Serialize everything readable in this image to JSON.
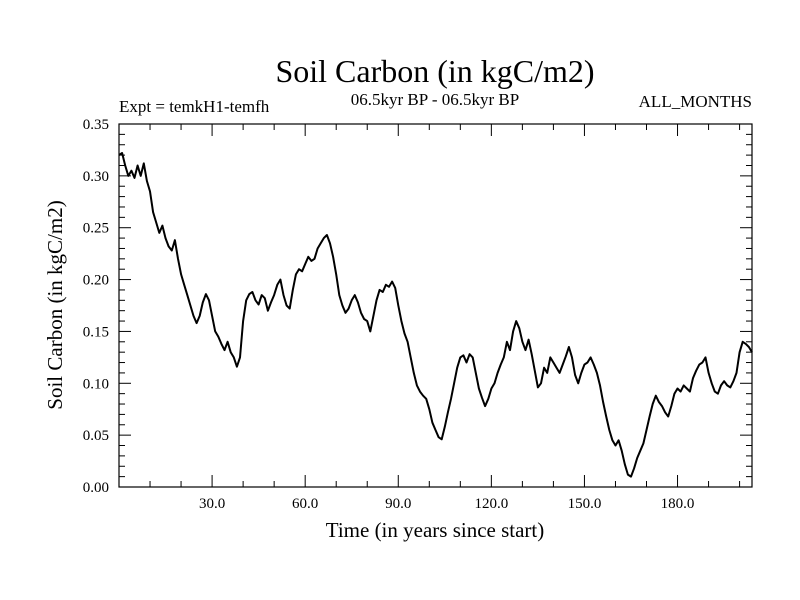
{
  "chart_data": {
    "type": "line",
    "title": "Soil Carbon (in kgC/m2)",
    "subtitle_left": "Expt = temkH1-temfh",
    "subtitle_center": "06.5kyr BP - 06.5kyr BP",
    "subtitle_right": "ALL_MONTHS",
    "xlabel": "Time (in years since start)",
    "ylabel": "Soil Carbon (in kgC/m2)",
    "xlim": [
      0,
      204
    ],
    "ylim": [
      0,
      0.35
    ],
    "x_ticks": [
      {
        "value": 30,
        "label": "30.0"
      },
      {
        "value": 60,
        "label": "60.0"
      },
      {
        "value": 90,
        "label": "90.0"
      },
      {
        "value": 120,
        "label": "120.0"
      },
      {
        "value": 150,
        "label": "150.0"
      },
      {
        "value": 180,
        "label": "180.0"
      }
    ],
    "y_ticks": [
      {
        "value": 0.0,
        "label": "0.00"
      },
      {
        "value": 0.05,
        "label": "0.05"
      },
      {
        "value": 0.1,
        "label": "0.10"
      },
      {
        "value": 0.15,
        "label": "0.15"
      },
      {
        "value": 0.2,
        "label": "0.20"
      },
      {
        "value": 0.25,
        "label": "0.25"
      },
      {
        "value": 0.3,
        "label": "0.30"
      },
      {
        "value": 0.35,
        "label": "0.35"
      }
    ],
    "series": [
      {
        "name": "Soil Carbon",
        "color": "#000000",
        "points": [
          [
            0,
            0.32
          ],
          [
            1,
            0.322
          ],
          [
            2,
            0.31
          ],
          [
            3,
            0.3
          ],
          [
            4,
            0.305
          ],
          [
            5,
            0.298
          ],
          [
            6,
            0.31
          ],
          [
            7,
            0.3
          ],
          [
            8,
            0.312
          ],
          [
            9,
            0.295
          ],
          [
            10,
            0.285
          ],
          [
            11,
            0.265
          ],
          [
            12,
            0.255
          ],
          [
            13,
            0.245
          ],
          [
            14,
            0.252
          ],
          [
            15,
            0.24
          ],
          [
            16,
            0.232
          ],
          [
            17,
            0.228
          ],
          [
            18,
            0.238
          ],
          [
            19,
            0.22
          ],
          [
            20,
            0.205
          ],
          [
            21,
            0.195
          ],
          [
            22,
            0.185
          ],
          [
            23,
            0.175
          ],
          [
            24,
            0.165
          ],
          [
            25,
            0.158
          ],
          [
            26,
            0.165
          ],
          [
            27,
            0.178
          ],
          [
            28,
            0.186
          ],
          [
            29,
            0.18
          ],
          [
            30,
            0.165
          ],
          [
            31,
            0.15
          ],
          [
            32,
            0.145
          ],
          [
            33,
            0.138
          ],
          [
            34,
            0.132
          ],
          [
            35,
            0.14
          ],
          [
            36,
            0.13
          ],
          [
            37,
            0.125
          ],
          [
            38,
            0.116
          ],
          [
            39,
            0.125
          ],
          [
            40,
            0.16
          ],
          [
            41,
            0.18
          ],
          [
            42,
            0.186
          ],
          [
            43,
            0.188
          ],
          [
            44,
            0.18
          ],
          [
            45,
            0.176
          ],
          [
            46,
            0.185
          ],
          [
            47,
            0.182
          ],
          [
            48,
            0.17
          ],
          [
            49,
            0.178
          ],
          [
            50,
            0.185
          ],
          [
            51,
            0.195
          ],
          [
            52,
            0.2
          ],
          [
            53,
            0.185
          ],
          [
            54,
            0.175
          ],
          [
            55,
            0.172
          ],
          [
            56,
            0.19
          ],
          [
            57,
            0.205
          ],
          [
            58,
            0.21
          ],
          [
            59,
            0.208
          ],
          [
            60,
            0.215
          ],
          [
            61,
            0.222
          ],
          [
            62,
            0.218
          ],
          [
            63,
            0.22
          ],
          [
            64,
            0.23
          ],
          [
            65,
            0.235
          ],
          [
            66,
            0.24
          ],
          [
            67,
            0.243
          ],
          [
            68,
            0.235
          ],
          [
            69,
            0.222
          ],
          [
            70,
            0.205
          ],
          [
            71,
            0.185
          ],
          [
            72,
            0.175
          ],
          [
            73,
            0.168
          ],
          [
            74,
            0.172
          ],
          [
            75,
            0.18
          ],
          [
            76,
            0.185
          ],
          [
            77,
            0.178
          ],
          [
            78,
            0.168
          ],
          [
            79,
            0.162
          ],
          [
            80,
            0.16
          ],
          [
            81,
            0.15
          ],
          [
            82,
            0.165
          ],
          [
            83,
            0.18
          ],
          [
            84,
            0.19
          ],
          [
            85,
            0.188
          ],
          [
            86,
            0.195
          ],
          [
            87,
            0.193
          ],
          [
            88,
            0.198
          ],
          [
            89,
            0.192
          ],
          [
            90,
            0.175
          ],
          [
            91,
            0.16
          ],
          [
            92,
            0.148
          ],
          [
            93,
            0.14
          ],
          [
            94,
            0.125
          ],
          [
            95,
            0.11
          ],
          [
            96,
            0.098
          ],
          [
            97,
            0.092
          ],
          [
            98,
            0.088
          ],
          [
            99,
            0.085
          ],
          [
            100,
            0.075
          ],
          [
            101,
            0.062
          ],
          [
            102,
            0.055
          ],
          [
            103,
            0.048
          ],
          [
            104,
            0.046
          ],
          [
            105,
            0.058
          ],
          [
            106,
            0.072
          ],
          [
            107,
            0.085
          ],
          [
            108,
            0.1
          ],
          [
            109,
            0.115
          ],
          [
            110,
            0.125
          ],
          [
            111,
            0.127
          ],
          [
            112,
            0.12
          ],
          [
            113,
            0.128
          ],
          [
            114,
            0.125
          ],
          [
            115,
            0.11
          ],
          [
            116,
            0.095
          ],
          [
            117,
            0.086
          ],
          [
            118,
            0.078
          ],
          [
            119,
            0.085
          ],
          [
            120,
            0.095
          ],
          [
            121,
            0.1
          ],
          [
            122,
            0.11
          ],
          [
            123,
            0.118
          ],
          [
            124,
            0.125
          ],
          [
            125,
            0.14
          ],
          [
            126,
            0.132
          ],
          [
            127,
            0.15
          ],
          [
            128,
            0.16
          ],
          [
            129,
            0.153
          ],
          [
            130,
            0.14
          ],
          [
            131,
            0.132
          ],
          [
            132,
            0.142
          ],
          [
            133,
            0.128
          ],
          [
            134,
            0.112
          ],
          [
            135,
            0.096
          ],
          [
            136,
            0.1
          ],
          [
            137,
            0.115
          ],
          [
            138,
            0.11
          ],
          [
            139,
            0.125
          ],
          [
            140,
            0.12
          ],
          [
            141,
            0.115
          ],
          [
            142,
            0.11
          ],
          [
            143,
            0.118
          ],
          [
            144,
            0.126
          ],
          [
            145,
            0.135
          ],
          [
            146,
            0.125
          ],
          [
            147,
            0.108
          ],
          [
            148,
            0.1
          ],
          [
            149,
            0.11
          ],
          [
            150,
            0.118
          ],
          [
            151,
            0.12
          ],
          [
            152,
            0.125
          ],
          [
            153,
            0.118
          ],
          [
            154,
            0.11
          ],
          [
            155,
            0.098
          ],
          [
            156,
            0.082
          ],
          [
            157,
            0.068
          ],
          [
            158,
            0.055
          ],
          [
            159,
            0.045
          ],
          [
            160,
            0.04
          ],
          [
            161,
            0.045
          ],
          [
            162,
            0.035
          ],
          [
            163,
            0.022
          ],
          [
            164,
            0.012
          ],
          [
            165,
            0.01
          ],
          [
            166,
            0.018
          ],
          [
            167,
            0.028
          ],
          [
            168,
            0.035
          ],
          [
            169,
            0.042
          ],
          [
            170,
            0.055
          ],
          [
            171,
            0.068
          ],
          [
            172,
            0.08
          ],
          [
            173,
            0.088
          ],
          [
            174,
            0.082
          ],
          [
            175,
            0.078
          ],
          [
            176,
            0.072
          ],
          [
            177,
            0.068
          ],
          [
            178,
            0.078
          ],
          [
            179,
            0.09
          ],
          [
            180,
            0.095
          ],
          [
            181,
            0.092
          ],
          [
            182,
            0.098
          ],
          [
            183,
            0.095
          ],
          [
            184,
            0.092
          ],
          [
            185,
            0.105
          ],
          [
            186,
            0.112
          ],
          [
            187,
            0.118
          ],
          [
            188,
            0.12
          ],
          [
            189,
            0.125
          ],
          [
            190,
            0.11
          ],
          [
            191,
            0.1
          ],
          [
            192,
            0.092
          ],
          [
            193,
            0.09
          ],
          [
            194,
            0.098
          ],
          [
            195,
            0.102
          ],
          [
            196,
            0.098
          ],
          [
            197,
            0.096
          ],
          [
            198,
            0.102
          ],
          [
            199,
            0.11
          ],
          [
            200,
            0.13
          ],
          [
            201,
            0.14
          ],
          [
            202,
            0.138
          ],
          [
            203,
            0.135
          ],
          [
            204,
            0.13
          ]
        ]
      }
    ]
  }
}
